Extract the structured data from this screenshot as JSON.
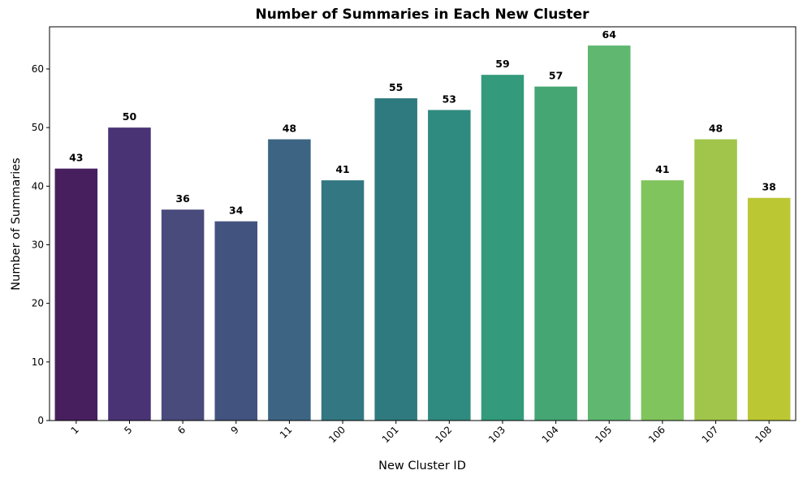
{
  "chart_data": {
    "type": "bar",
    "title": "Number of Summaries in Each New Cluster",
    "xlabel": "New Cluster ID",
    "ylabel": "Number of Summaries",
    "categories": [
      "1",
      "5",
      "6",
      "9",
      "11",
      "100",
      "101",
      "102",
      "103",
      "104",
      "105",
      "106",
      "107",
      "108"
    ],
    "values": [
      43,
      50,
      36,
      34,
      48,
      41,
      55,
      53,
      59,
      57,
      64,
      41,
      48,
      38
    ],
    "colors": [
      "#481f5e",
      "#493375",
      "#484b7b",
      "#43537f",
      "#3d6583",
      "#337782",
      "#2f7a7e",
      "#2f8b80",
      "#339a7b",
      "#45a573",
      "#5fb770",
      "#80c45d",
      "#a1c54a",
      "#bcc734"
    ],
    "yticks": [
      0,
      10,
      20,
      30,
      40,
      50,
      60
    ],
    "ylim": [
      0,
      67.2
    ],
    "grid": false,
    "legend": "none",
    "xtick_rotation": 45
  }
}
